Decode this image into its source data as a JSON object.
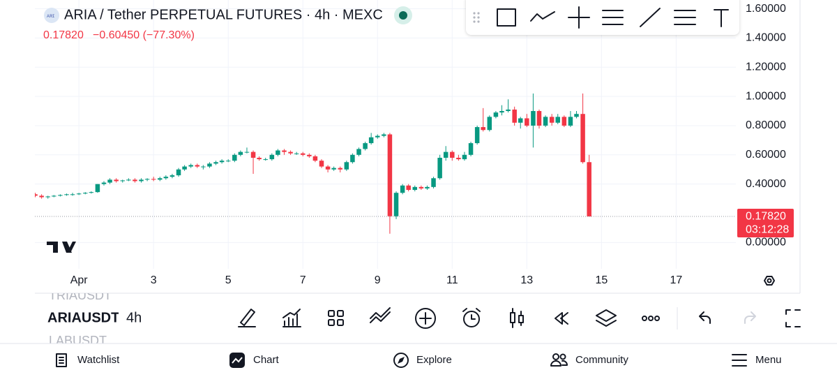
{
  "header": {
    "title": "ARIA / Tether PERPETUAL FUTURES · 4h · MEXC",
    "price": "0.17820",
    "change": "−0.60450 (−77.30%)"
  },
  "chart_data": {
    "type": "candlestick",
    "x": [
      -0.17,
      0,
      0.17,
      0.33,
      0.5,
      0.67,
      0.83,
      1,
      1.17,
      1.33,
      1.5,
      1.67,
      1.83,
      2,
      2.17,
      2.33,
      2.5,
      2.67,
      2.83,
      3,
      3.17,
      3.33,
      3.5,
      3.67,
      3.83,
      4,
      4.17,
      4.33,
      4.5,
      4.67,
      4.83,
      5,
      5.17,
      5.33,
      5.5,
      5.67,
      5.83,
      6,
      6.17,
      6.33,
      6.5,
      6.67,
      6.83,
      7,
      7.17,
      7.33,
      7.5,
      7.67,
      7.83,
      8,
      8.17,
      8.33,
      8.5,
      8.67,
      8.83,
      9,
      9.17,
      9.33,
      9.5,
      9.67,
      9.83,
      10,
      10.17,
      10.33,
      10.5,
      10.67,
      10.83,
      11,
      11.17,
      11.33,
      11.5,
      11.67,
      11.83,
      12,
      12.17,
      12.33,
      12.5,
      12.67,
      12.83,
      13,
      13.17,
      13.33,
      13.5,
      13.67,
      13.83,
      14,
      14.17,
      14.33,
      14.5,
      14.67
    ],
    "open": [
      0.33,
      0.32,
      0.31,
      0.315,
      0.32,
      0.325,
      0.33,
      0.33,
      0.335,
      0.34,
      0.345,
      0.4,
      0.41,
      0.43,
      0.42,
      0.425,
      0.43,
      0.42,
      0.43,
      0.435,
      0.43,
      0.44,
      0.45,
      0.46,
      0.5,
      0.52,
      0.53,
      0.52,
      0.52,
      0.54,
      0.55,
      0.56,
      0.56,
      0.6,
      0.62,
      0.62,
      0.58,
      0.57,
      0.57,
      0.6,
      0.63,
      0.62,
      0.61,
      0.61,
      0.6,
      0.59,
      0.56,
      0.52,
      0.5,
      0.51,
      0.5,
      0.55,
      0.6,
      0.64,
      0.68,
      0.72,
      0.73,
      0.74,
      0.18,
      0.34,
      0.39,
      0.36,
      0.38,
      0.37,
      0.38,
      0.44,
      0.58,
      0.62,
      0.58,
      0.57,
      0.6,
      0.68,
      0.79,
      0.77,
      0.86,
      0.89,
      0.9,
      0.91,
      0.82,
      0.85,
      0.8,
      0.9,
      0.8,
      0.86,
      0.82,
      0.86,
      0.8,
      0.86,
      0.88,
      0.55
    ],
    "high": [
      0.34,
      0.33,
      0.32,
      0.325,
      0.33,
      0.335,
      0.34,
      0.34,
      0.345,
      0.35,
      0.4,
      0.42,
      0.44,
      0.44,
      0.43,
      0.44,
      0.44,
      0.44,
      0.44,
      0.45,
      0.45,
      0.46,
      0.47,
      0.51,
      0.53,
      0.54,
      0.54,
      0.53,
      0.55,
      0.56,
      0.57,
      0.57,
      0.61,
      0.63,
      0.65,
      0.63,
      0.59,
      0.58,
      0.61,
      0.64,
      0.64,
      0.63,
      0.62,
      0.62,
      0.61,
      0.6,
      0.57,
      0.53,
      0.52,
      0.52,
      0.56,
      0.61,
      0.65,
      0.69,
      0.75,
      0.74,
      0.75,
      0.75,
      0.35,
      0.4,
      0.4,
      0.39,
      0.39,
      0.39,
      0.45,
      0.6,
      0.66,
      0.63,
      0.6,
      0.62,
      0.69,
      0.8,
      0.92,
      0.87,
      0.9,
      0.94,
      0.98,
      0.93,
      0.86,
      0.88,
      1.02,
      0.91,
      0.87,
      0.88,
      0.88,
      0.87,
      0.9,
      0.9,
      1.02,
      0.6
    ],
    "low": [
      0.31,
      0.3,
      0.3,
      0.31,
      0.315,
      0.32,
      0.32,
      0.325,
      0.33,
      0.335,
      0.34,
      0.39,
      0.4,
      0.41,
      0.41,
      0.42,
      0.41,
      0.41,
      0.42,
      0.42,
      0.42,
      0.43,
      0.44,
      0.45,
      0.49,
      0.51,
      0.51,
      0.5,
      0.51,
      0.53,
      0.54,
      0.55,
      0.55,
      0.59,
      0.61,
      0.47,
      0.56,
      0.56,
      0.56,
      0.59,
      0.6,
      0.6,
      0.6,
      0.59,
      0.58,
      0.55,
      0.51,
      0.48,
      0.49,
      0.48,
      0.49,
      0.54,
      0.59,
      0.63,
      0.67,
      0.71,
      0.72,
      0.06,
      0.16,
      0.33,
      0.35,
      0.35,
      0.36,
      0.36,
      0.37,
      0.43,
      0.56,
      0.56,
      0.56,
      0.56,
      0.59,
      0.67,
      0.76,
      0.76,
      0.85,
      0.87,
      0.89,
      0.8,
      0.78,
      0.79,
      0.65,
      0.78,
      0.79,
      0.8,
      0.81,
      0.79,
      0.79,
      0.85,
      0.54,
      0.1782
    ],
    "close": [
      0.32,
      0.31,
      0.315,
      0.32,
      0.325,
      0.33,
      0.33,
      0.335,
      0.34,
      0.345,
      0.4,
      0.41,
      0.43,
      0.42,
      0.425,
      0.43,
      0.42,
      0.43,
      0.435,
      0.43,
      0.44,
      0.45,
      0.46,
      0.5,
      0.52,
      0.53,
      0.52,
      0.52,
      0.54,
      0.55,
      0.56,
      0.56,
      0.6,
      0.62,
      0.62,
      0.58,
      0.57,
      0.57,
      0.6,
      0.63,
      0.62,
      0.61,
      0.61,
      0.6,
      0.59,
      0.56,
      0.52,
      0.5,
      0.51,
      0.5,
      0.55,
      0.6,
      0.64,
      0.68,
      0.72,
      0.73,
      0.74,
      0.18,
      0.34,
      0.39,
      0.36,
      0.38,
      0.37,
      0.38,
      0.44,
      0.58,
      0.62,
      0.58,
      0.57,
      0.6,
      0.68,
      0.79,
      0.77,
      0.86,
      0.89,
      0.9,
      0.91,
      0.82,
      0.85,
      0.8,
      0.9,
      0.8,
      0.86,
      0.82,
      0.86,
      0.8,
      0.86,
      0.88,
      0.55,
      0.1782
    ],
    "up_color": "#089981",
    "down_color": "#f23645",
    "grid": true,
    "ylim": [
      -0.18,
      1.66
    ],
    "yticks": [
      {
        "value": 0,
        "label": "0.00000"
      },
      {
        "value": 0.4,
        "label": "0.40000"
      },
      {
        "value": 0.6,
        "label": "0.60000"
      },
      {
        "value": 0.8,
        "label": "0.80000"
      },
      {
        "value": 1,
        "label": "1.00000"
      },
      {
        "value": 1.2,
        "label": "1.20000"
      },
      {
        "value": 1.4,
        "label": "1.40000"
      },
      {
        "value": 1.6,
        "label": "1.60000"
      }
    ],
    "xlim": [
      -0.18,
      18.6
    ],
    "xticks": [
      {
        "value": 1,
        "label": "Apr"
      },
      3,
      5,
      7,
      9,
      11,
      13,
      15,
      17
    ],
    "last_price": {
      "value": 0.1782,
      "label": "0.17820",
      "countdown": "03:12:28"
    }
  },
  "symbol_bar": {
    "symbols": [
      "TRIAUSDT",
      "ARIAUSDT",
      "LABUSDT"
    ],
    "interval": "4h"
  },
  "nav": [
    "Watchlist",
    "Chart",
    "Explore",
    "Community",
    "Menu"
  ]
}
